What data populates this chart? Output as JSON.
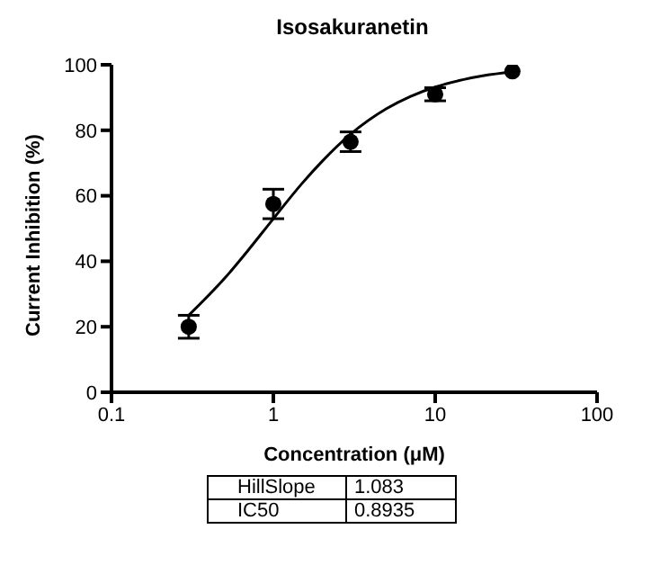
{
  "chart_data": {
    "type": "scatter",
    "title": "Isosakuranetin",
    "xlabel": "Concentration (μM)",
    "ylabel": "Current Inhibition (%)",
    "log": "x",
    "xlim": [
      0.1,
      100
    ],
    "xticks": [
      0.1,
      1,
      10,
      100
    ],
    "ylim": [
      0,
      100
    ],
    "yticks": [
      0,
      20,
      40,
      60,
      80,
      100
    ],
    "line_style": "solid",
    "series": [
      {
        "marker": "circle",
        "color": "#000000",
        "x": [
          0.3,
          1,
          3,
          10,
          30
        ],
        "values": [
          20,
          57.5,
          76.5,
          91,
          98
        ],
        "errors": [
          3.5,
          4.5,
          3,
          2,
          null
        ]
      },
      {
        "type": "line",
        "marker": "none",
        "color": "#000000",
        "x": [
          0.3,
          0.5,
          0.7,
          1,
          1.5,
          2,
          3,
          5,
          7,
          10,
          15,
          20,
          30
        ],
        "values": [
          23.5,
          34.8,
          43.4,
          53,
          63.7,
          70.5,
          78.8,
          86.6,
          90.3,
          93.2,
          95.5,
          96.7,
          97.8
        ]
      }
    ],
    "annotations": [
      "HillSlope",
      "1.083",
      "IC50",
      "0.8935"
    ]
  }
}
